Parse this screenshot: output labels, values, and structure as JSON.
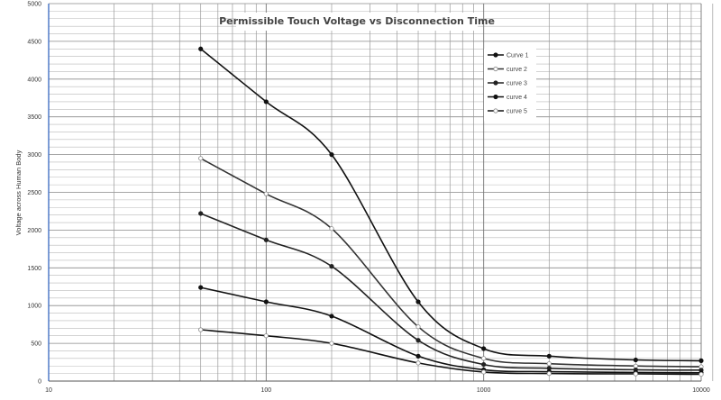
{
  "chart_data": {
    "type": "line",
    "title": "Permissible Touch Voltage vs Disconnection Time",
    "xlabel": "",
    "ylabel": "Voltage across Human Body",
    "x_scale": "log",
    "xlim": [
      10,
      10000
    ],
    "ylim": [
      0,
      5000
    ],
    "x_tick_labels": [
      "10",
      "100",
      "1000",
      "10000"
    ],
    "y_tick_labels": [
      "0",
      "500",
      "1000",
      "1500",
      "2000",
      "2500",
      "3000",
      "3500",
      "4000",
      "4500",
      "5000"
    ],
    "grid": true,
    "legend_position": "top-right",
    "x": [
      50,
      100,
      200,
      500,
      1000,
      2000,
      5000,
      10000
    ],
    "series": [
      {
        "name": "Curve 1",
        "color": "#111111",
        "marker": "filled",
        "values": [
          4400,
          3700,
          3000,
          1050,
          430,
          330,
          280,
          270
        ]
      },
      {
        "name": "curve 2",
        "color": "#333333",
        "marker": "hollow",
        "values": [
          2950,
          2480,
          2020,
          720,
          300,
          230,
          200,
          190
        ]
      },
      {
        "name": "curve 3",
        "color": "#222222",
        "marker": "filled",
        "values": [
          2220,
          1870,
          1520,
          540,
          220,
          170,
          150,
          145
        ]
      },
      {
        "name": "curve 4",
        "color": "#111111",
        "marker": "filled",
        "values": [
          1240,
          1050,
          860,
          330,
          150,
          125,
          115,
          110
        ]
      },
      {
        "name": "curve 5",
        "color": "#111111",
        "marker": "hollow",
        "values": [
          680,
          600,
          500,
          240,
          120,
          100,
          95,
          90
        ]
      }
    ]
  }
}
